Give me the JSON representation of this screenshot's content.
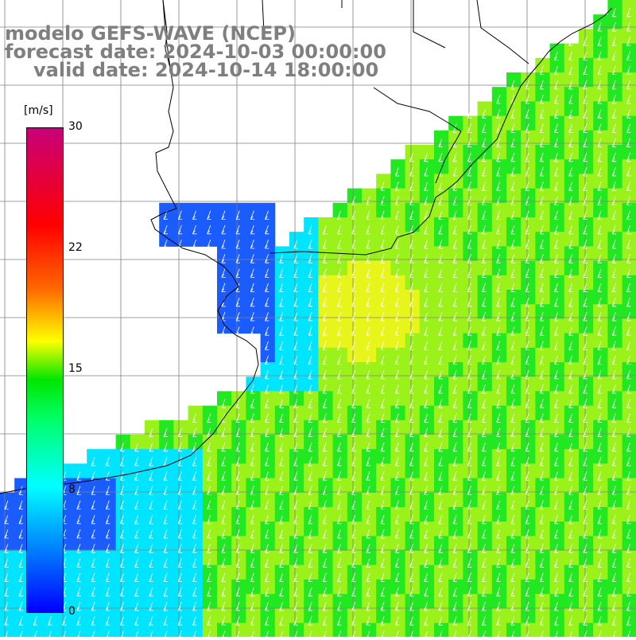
{
  "title": {
    "line1": "modelo GEFS-WAVE (NCEP)",
    "line2": "forecast date: 2024-10-03 00:00:00",
    "line3": "valid date: 2024-10-14 18:00:00"
  },
  "legend": {
    "unit": "[m/s]",
    "ticks": [
      "30",
      "22",
      "15",
      "8",
      "0"
    ],
    "colors": [
      "#0000ff",
      "#00ffff",
      "#00ff66",
      "#00e600",
      "#ffff00",
      "#ff6600",
      "#ff0000",
      "#c8007a"
    ]
  },
  "map": {
    "ocean_colors": {
      "low": "#1a5cff",
      "cyan": "#00e5ff",
      "green": "#22e822",
      "lime": "#9af21a",
      "yellow": "#e8f51a"
    },
    "grid_color": "#808080",
    "coastline_color": "#000000",
    "arrow_color": "#ffffff"
  }
}
